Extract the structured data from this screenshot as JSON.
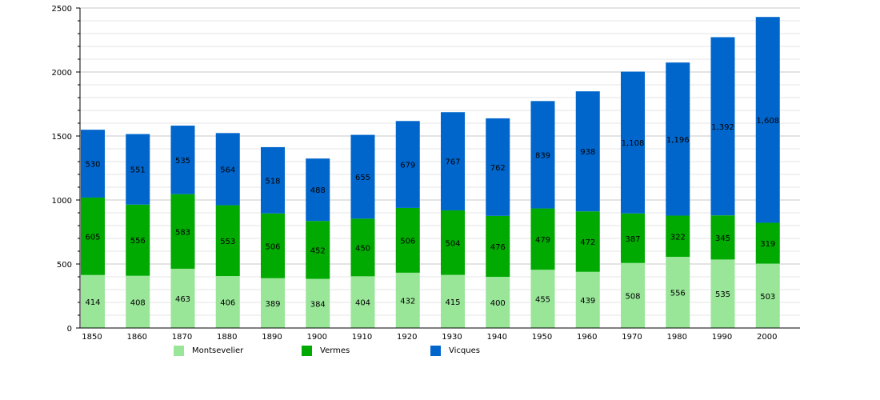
{
  "chart_data": {
    "type": "bar",
    "stacked": true,
    "categories": [
      "1850",
      "1860",
      "1870",
      "1880",
      "1890",
      "1900",
      "1910",
      "1920",
      "1930",
      "1940",
      "1950",
      "1960",
      "1970",
      "1980",
      "1990",
      "2000"
    ],
    "series": [
      {
        "name": "Montsevelier",
        "color": "#99e699",
        "values": [
          414,
          408,
          463,
          406,
          389,
          384,
          404,
          432,
          415,
          400,
          455,
          439,
          508,
          556,
          535,
          503
        ],
        "labels": [
          "414",
          "408",
          "463",
          "406",
          "389",
          "384",
          "404",
          "432",
          "415",
          "400",
          "455",
          "439",
          "508",
          "556",
          "535",
          "503"
        ]
      },
      {
        "name": "Vermes",
        "color": "#00aa00",
        "values": [
          605,
          556,
          583,
          553,
          506,
          452,
          450,
          506,
          504,
          476,
          479,
          472,
          387,
          322,
          345,
          319
        ],
        "labels": [
          "605",
          "556",
          "583",
          "553",
          "506",
          "452",
          "450",
          "506",
          "504",
          "476",
          "479",
          "472",
          "387",
          "322",
          "345",
          "319"
        ]
      },
      {
        "name": "Vicques",
        "color": "#0066cc",
        "values": [
          530,
          551,
          535,
          564,
          518,
          488,
          655,
          679,
          767,
          762,
          839,
          938,
          1108,
          1196,
          1392,
          1608
        ],
        "labels": [
          "530",
          "551",
          "535",
          "564",
          "518",
          "488",
          "655",
          "679",
          "767",
          "762",
          "839",
          "938",
          "1,108",
          "1,196",
          "1,392",
          "1,608"
        ]
      }
    ],
    "ylim": [
      0,
      2500
    ],
    "yticks": [
      "0",
      "500",
      "1000",
      "1500",
      "2000",
      "2500"
    ],
    "title": "",
    "xlabel": "",
    "ylabel": "",
    "legend_position": "bottom"
  }
}
